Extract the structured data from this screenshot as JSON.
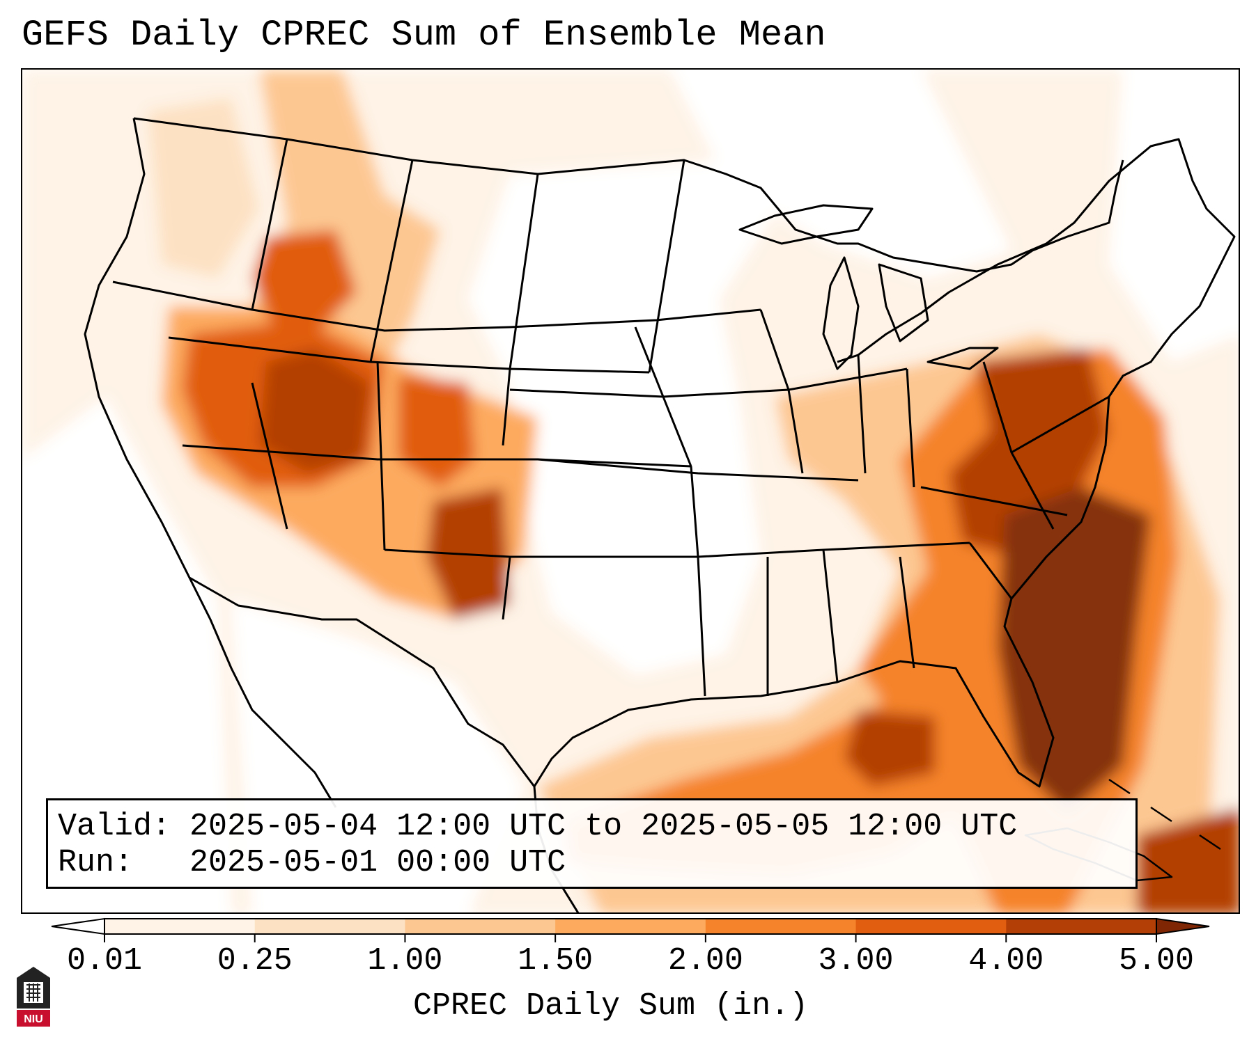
{
  "title": "GEFS Daily CPREC Sum of Ensemble Mean",
  "info": {
    "valid_label": "Valid:",
    "valid_value": "2025-05-04 12:00 UTC to 2025-05-05 12:00 UTC",
    "run_label": "Run:",
    "run_value": "2025-05-01 00:00 UTC"
  },
  "colorbar": {
    "label": "CPREC Daily Sum (in.)",
    "ticks": [
      "0.01",
      "0.25",
      "1.00",
      "1.50",
      "2.00",
      "3.00",
      "4.00",
      "5.00"
    ],
    "colors": [
      "#fef3e6",
      "#fde1c3",
      "#fdc792",
      "#fdaa5e",
      "#f5832c",
      "#e15d0f",
      "#b43f06",
      "#85300b"
    ],
    "under_color": "#ffffff",
    "over_color": "#7f2704"
  },
  "map": {
    "region": "CONUS",
    "heavy_precip_areas": [
      "Great Basin / Utah",
      "New Mexico",
      "Mid-Atlantic",
      "Southeast coast",
      "Gulf of Mexico"
    ]
  },
  "logo": {
    "text": "NIU"
  }
}
